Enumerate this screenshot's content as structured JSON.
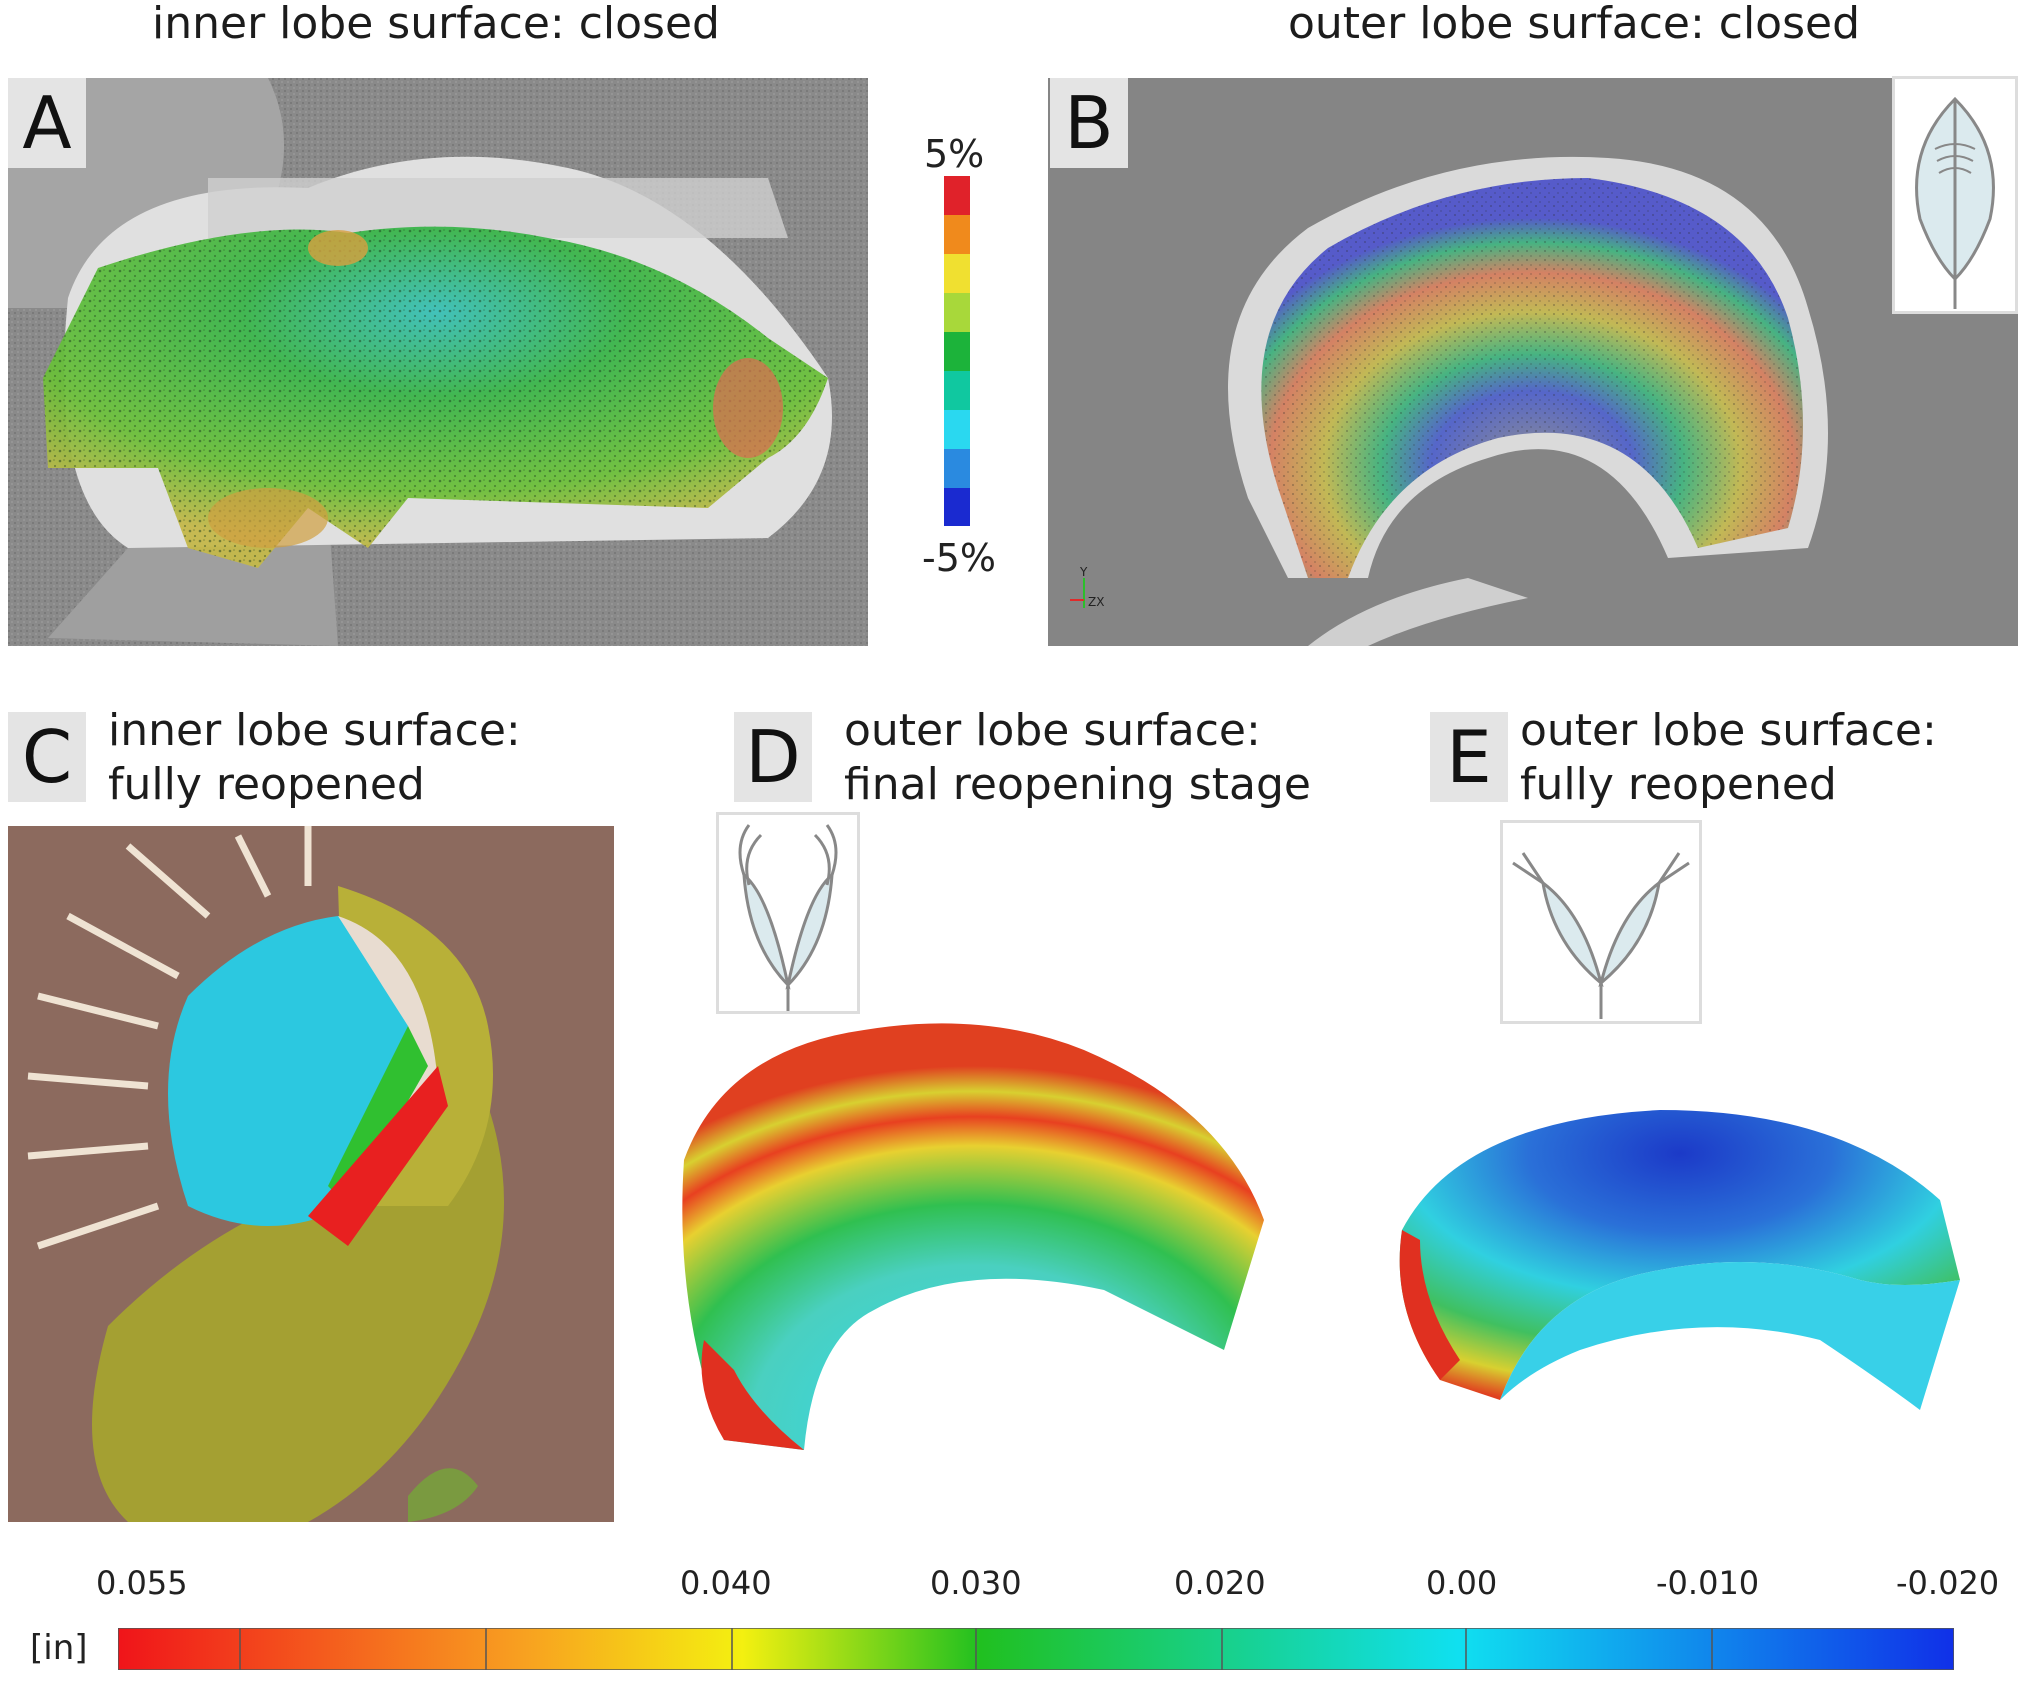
{
  "panels": {
    "a": {
      "letter": "A",
      "title": "inner lobe surface: closed"
    },
    "b": {
      "letter": "B",
      "title": "outer lobe surface: closed",
      "axes_labels": {
        "y": "Y",
        "zx": "ZX"
      }
    },
    "c": {
      "letter": "C",
      "title_line1": "inner lobe surface:",
      "title_line2": "fully reopened"
    },
    "d": {
      "letter": "D",
      "title_line1": "outer lobe surface:",
      "title_line2": "final reopening stage"
    },
    "e": {
      "letter": "E",
      "title_line1": "outer lobe surface:",
      "title_line2": "fully reopened"
    }
  },
  "strain_scale": {
    "max_label": "5%",
    "min_label": "-5%",
    "colors": [
      "#e0222a",
      "#f08a1c",
      "#f0e030",
      "#a8d83a",
      "#1cb33a",
      "#10c8a0",
      "#2ad8f0",
      "#2a8ae0",
      "#1a2ad0"
    ]
  },
  "displacement_scale": {
    "unit": "[in]",
    "ticks": [
      "0.055",
      "0.040",
      "0.030",
      "0.020",
      "0.00",
      "-0.010",
      "-0.020"
    ],
    "colors": [
      "#f0141a",
      "#f8a020",
      "#f4f010",
      "#20c020",
      "#10e0d8",
      "#1040e8"
    ]
  }
}
